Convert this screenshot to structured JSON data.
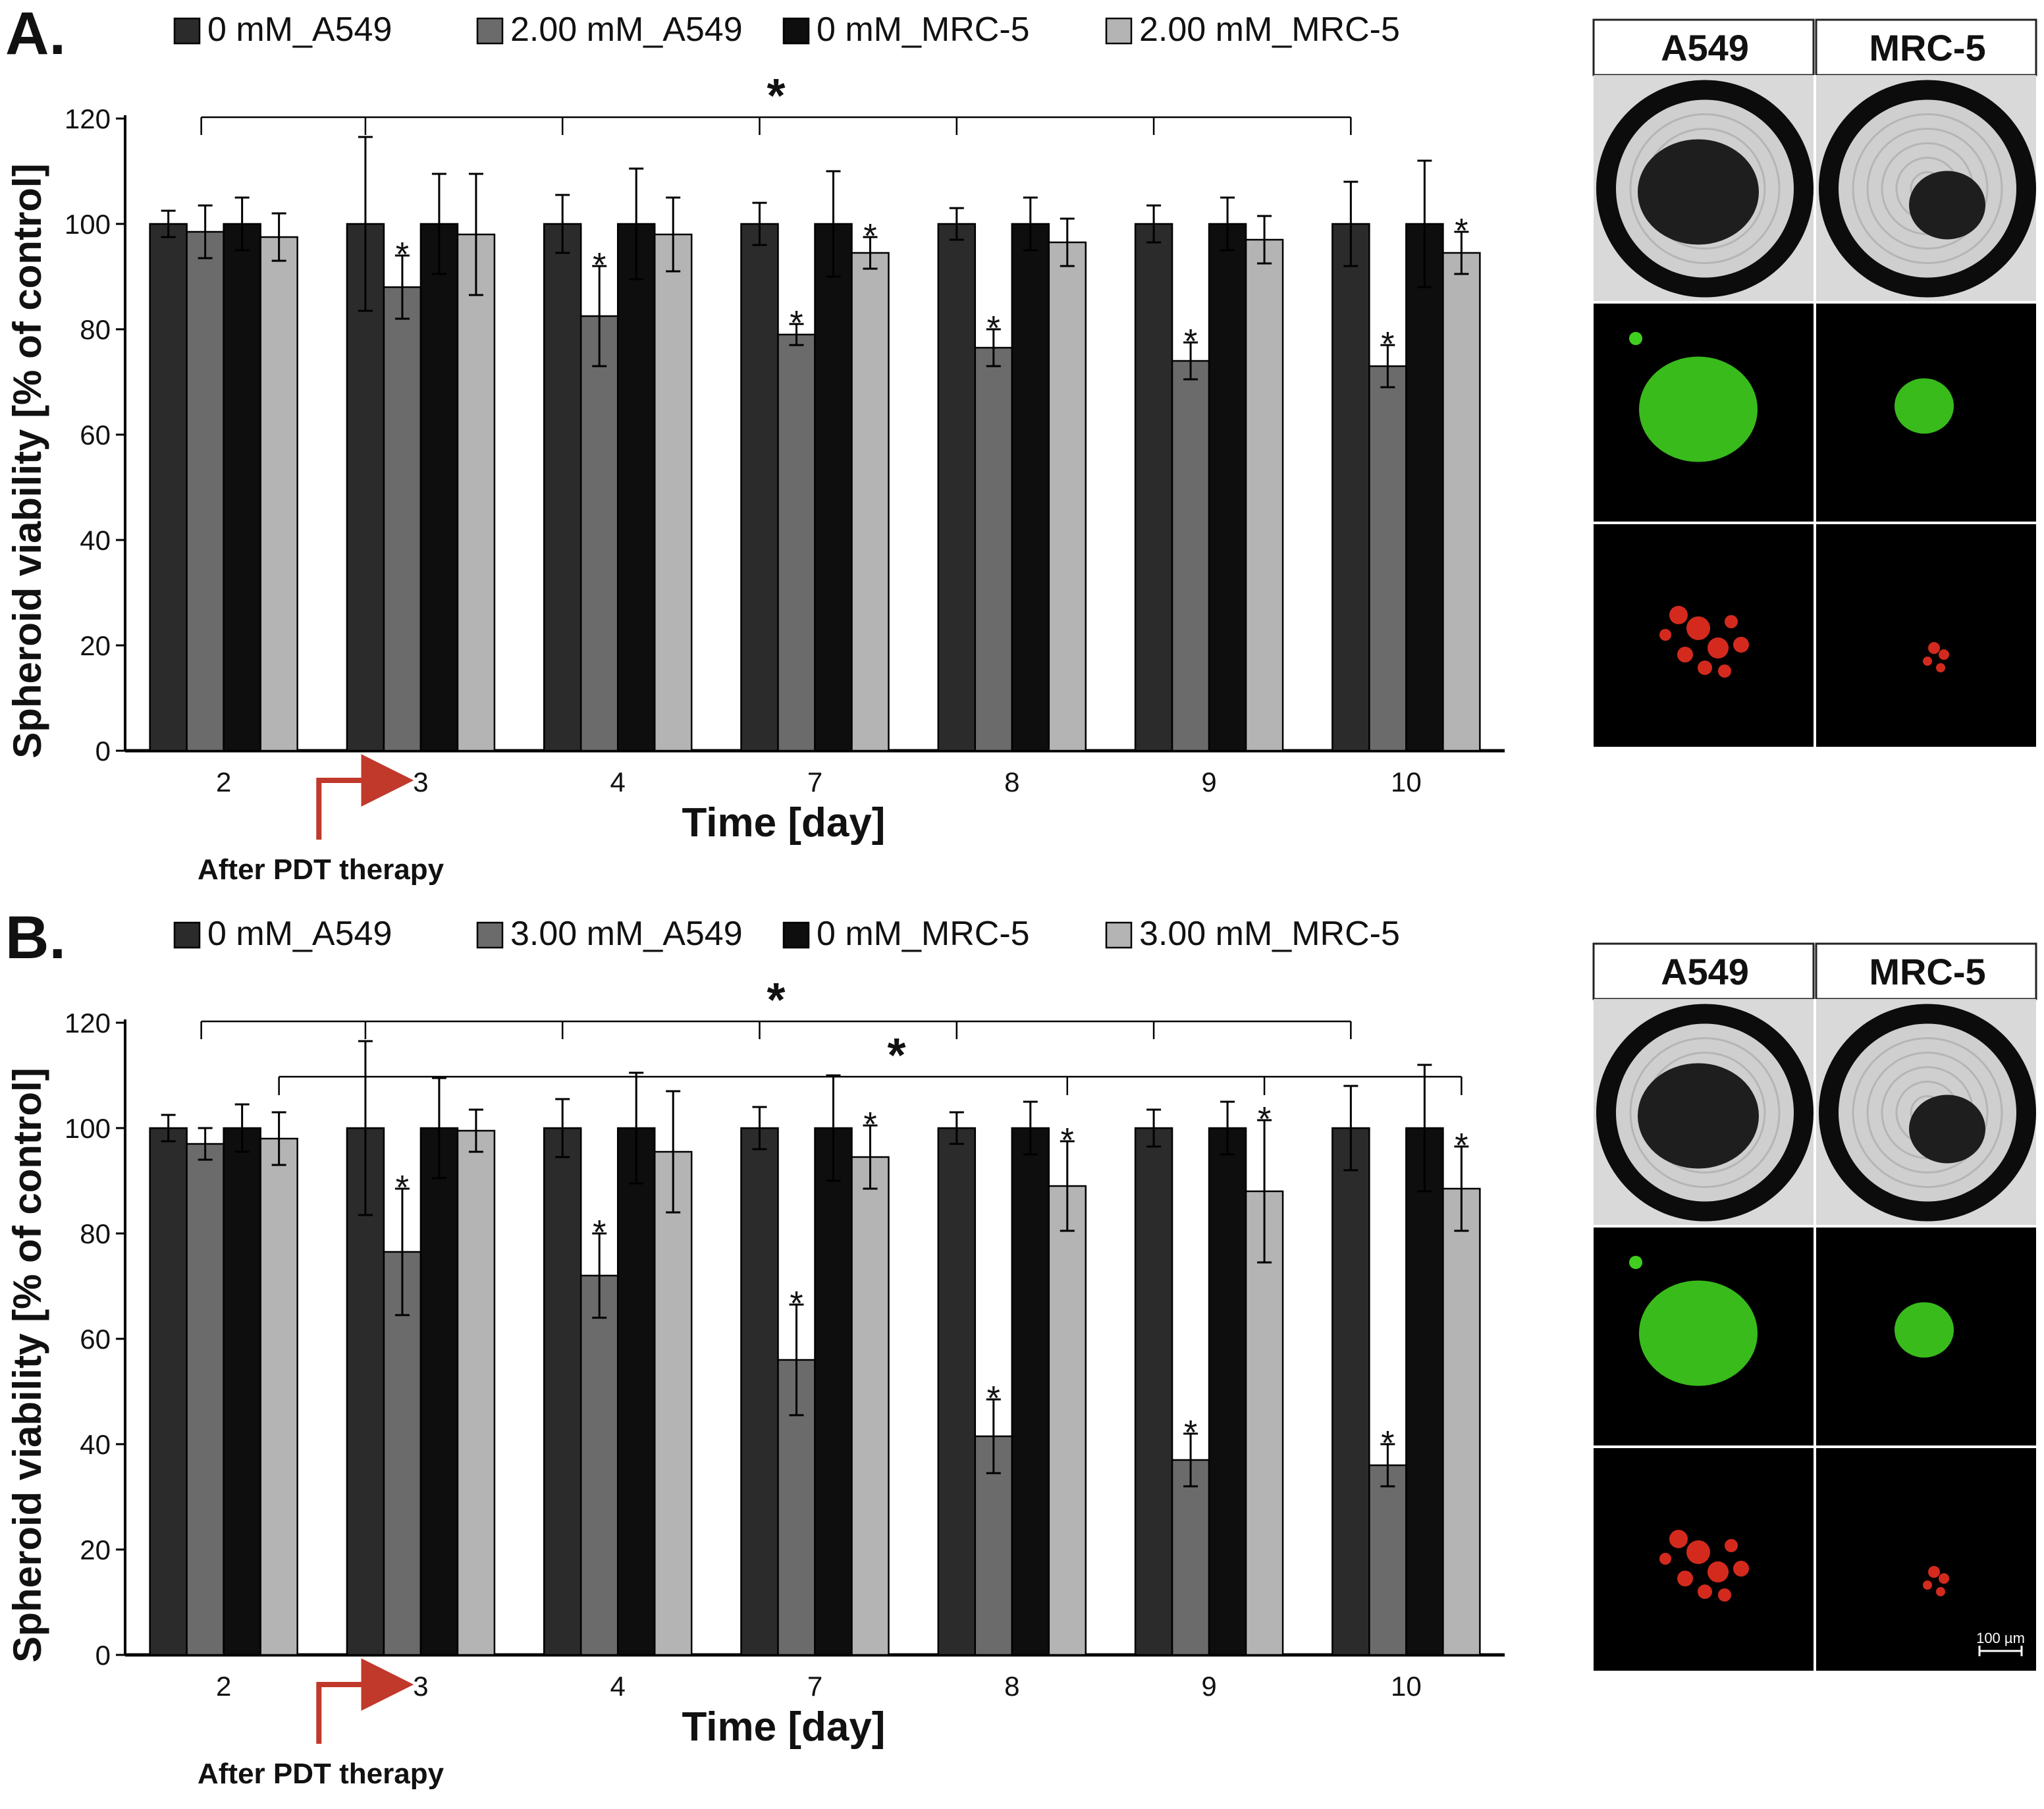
{
  "figure": {
    "panels": [
      {
        "panel_label": "A.",
        "legend": [
          "0 mM_A549",
          "2.00 mM_A549",
          "0 mM_MRC-5",
          "2.00 mM_MRC-5"
        ],
        "xlabel": "Time [day]",
        "ylabel": "Spheroid viability [% of control]",
        "annotation": "After PDT therapy",
        "sig_marker": "*",
        "images": {
          "col_labels": [
            "A549",
            "MRC-5"
          ],
          "rows": [
            "brightfield",
            "live (green)",
            "dead (red)"
          ]
        }
      },
      {
        "panel_label": "B.",
        "legend": [
          "0 mM_A549",
          "3.00 mM_A549",
          "0 mM_MRC-5",
          "3.00 mM_MRC-5"
        ],
        "xlabel": "Time [day]",
        "ylabel": "Spheroid viability [% of control]",
        "annotation": "After PDT therapy",
        "sig_marker": "*",
        "images": {
          "col_labels": [
            "A549",
            "MRC-5"
          ],
          "rows": [
            "brightfield",
            "live (green)",
            "dead (red)"
          ],
          "scale_bar": "100 µm"
        }
      }
    ]
  },
  "colors": {
    "series": [
      "#2b2b2b",
      "#6b6b6b",
      "#0e0e0e",
      "#b4b4b4"
    ],
    "annotation_arrow": "#c0392b",
    "live_stain": "#3fcf1f",
    "dead_stain": "#d42a1e"
  },
  "chart_data": [
    {
      "type": "bar",
      "panel": "A.",
      "categories": [
        "2",
        "3",
        "4",
        "7",
        "8",
        "9",
        "10"
      ],
      "xlabel": "Time [day]",
      "ylabel": "Spheroid viability [% of control]",
      "ylim": [
        0,
        120
      ],
      "yticks": [
        0,
        20,
        40,
        60,
        80,
        100,
        120
      ],
      "legend_position": "top",
      "grid": false,
      "series": [
        {
          "name": "0 mM_A549",
          "values": [
            100,
            100,
            100,
            100,
            100,
            100,
            100
          ],
          "errors": [
            2.5,
            16.5,
            5.5,
            4,
            3,
            3.5,
            8
          ],
          "significant": [
            false,
            false,
            false,
            false,
            false,
            false,
            false
          ]
        },
        {
          "name": "2.00 mM_A549",
          "values": [
            98.5,
            88,
            82.5,
            79,
            76.5,
            74,
            73
          ],
          "errors": [
            5,
            6,
            9.5,
            2,
            3.5,
            3.5,
            4
          ],
          "significant": [
            false,
            true,
            true,
            true,
            true,
            true,
            true
          ]
        },
        {
          "name": "0 mM_MRC-5",
          "values": [
            100,
            100,
            100,
            100,
            100,
            100,
            100
          ],
          "errors": [
            5,
            9.5,
            10.5,
            10,
            5,
            5,
            12
          ],
          "significant": [
            false,
            false,
            false,
            false,
            false,
            false,
            false
          ]
        },
        {
          "name": "2.00 mM_MRC-5",
          "values": [
            97.5,
            98,
            98,
            94.5,
            96.5,
            97,
            94.5
          ],
          "errors": [
            4.5,
            11.5,
            7,
            3,
            4.5,
            4.5,
            4
          ],
          "significant": [
            false,
            false,
            false,
            true,
            false,
            false,
            true
          ]
        }
      ],
      "bracket_groups": [
        [
          "2",
          "3",
          "4",
          "7",
          "8",
          "9",
          "10"
        ]
      ]
    },
    {
      "type": "bar",
      "panel": "B.",
      "categories": [
        "2",
        "3",
        "4",
        "7",
        "8",
        "9",
        "10"
      ],
      "xlabel": "Time [day]",
      "ylabel": "Spheroid viability [% of control]",
      "ylim": [
        0,
        120
      ],
      "yticks": [
        0,
        20,
        40,
        60,
        80,
        100,
        120
      ],
      "legend_position": "top",
      "grid": false,
      "series": [
        {
          "name": "0 mM_A549",
          "values": [
            100,
            100,
            100,
            100,
            100,
            100,
            100
          ],
          "errors": [
            2.5,
            16.5,
            5.5,
            4,
            3,
            3.5,
            8
          ],
          "significant": [
            false,
            false,
            false,
            false,
            false,
            false,
            false
          ]
        },
        {
          "name": "3.00 mM_A549",
          "values": [
            97,
            76.5,
            72,
            56,
            41.5,
            37,
            36
          ],
          "errors": [
            3,
            12,
            8,
            10.5,
            7,
            5,
            4
          ],
          "significant": [
            false,
            true,
            true,
            true,
            true,
            true,
            true
          ]
        },
        {
          "name": "0 mM_MRC-5",
          "values": [
            100,
            100,
            100,
            100,
            100,
            100,
            100
          ],
          "errors": [
            4.5,
            9.5,
            10.5,
            10,
            5,
            5,
            12
          ],
          "significant": [
            false,
            false,
            false,
            false,
            false,
            false,
            false
          ]
        },
        {
          "name": "3.00 mM_MRC-5",
          "values": [
            98,
            99.5,
            95.5,
            94.5,
            89,
            88,
            88.5
          ],
          "errors": [
            5,
            4,
            11.5,
            6,
            8.5,
            13.5,
            8
          ],
          "significant": [
            false,
            false,
            false,
            true,
            true,
            true,
            true
          ]
        }
      ],
      "bracket_groups": [
        [
          "2",
          "3",
          "4",
          "7",
          "8",
          "9",
          "10"
        ],
        [
          "2",
          "8",
          "9",
          "10"
        ]
      ]
    }
  ]
}
